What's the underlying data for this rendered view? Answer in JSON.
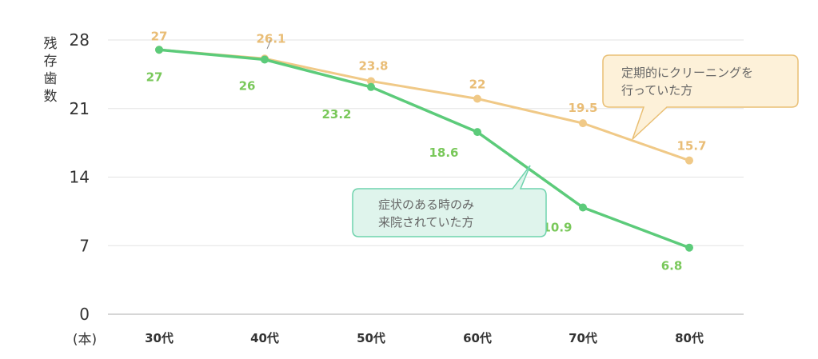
{
  "chart_data": {
    "type": "line",
    "ylabel": "残存歯数",
    "yunit": "(本)",
    "ylim": [
      0,
      28
    ],
    "yticks": [
      0,
      7,
      14,
      21,
      28
    ],
    "categories": [
      "30代",
      "40代",
      "50代",
      "60代",
      "70代",
      "80代"
    ],
    "grid": true,
    "series": [
      {
        "name": "定期的にクリーニングを行っていた方",
        "name_lines": [
          "定期的にクリーニングを",
          "行っていた方"
        ],
        "values": [
          27,
          26.1,
          23.8,
          22,
          19.5,
          15.7
        ],
        "labels": [
          "27",
          "26.1",
          "23.8",
          "22",
          "19.5",
          "15.7"
        ],
        "color": "#f0c987",
        "label_color": "#e9bd76",
        "callout_fill": "#fdf1d9",
        "callout_stroke": "#e9bf74"
      },
      {
        "name": "症状のある時のみ来院されていた方",
        "name_lines": [
          "症状のある時のみ",
          "来院されていた方"
        ],
        "values": [
          27,
          26,
          23.2,
          18.6,
          10.9,
          6.8
        ],
        "labels": [
          "27",
          "26",
          "23.2",
          "18.6",
          "10.9",
          "6.8"
        ],
        "color": "#5ccb7a",
        "label_color": "#79c85a",
        "callout_fill": "#dff4ec",
        "callout_stroke": "#6fd3ad"
      }
    ]
  }
}
